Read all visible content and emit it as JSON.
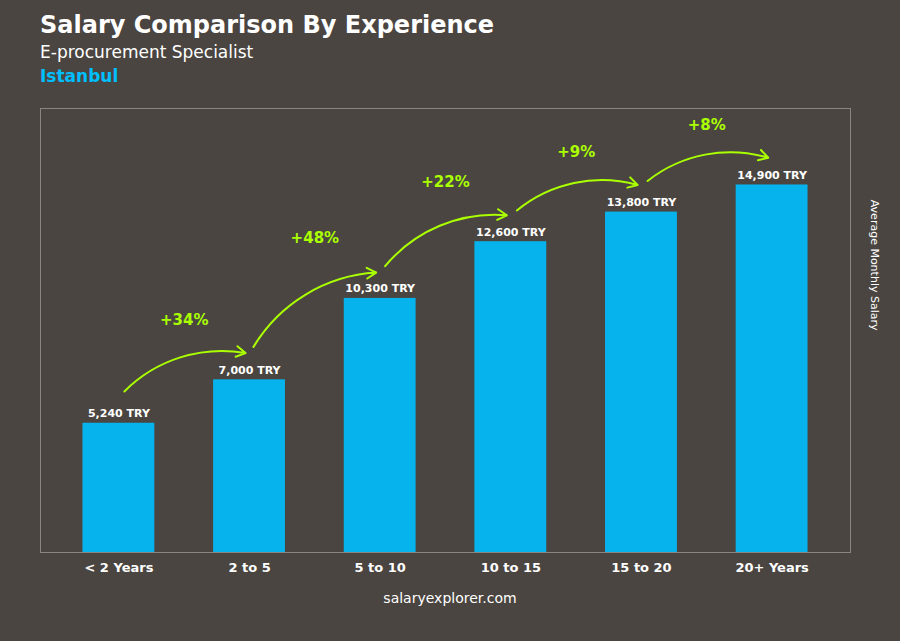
{
  "chart_data": {
    "type": "bar",
    "title": "Salary Comparison By Experience",
    "subtitle": "E-procurement Specialist",
    "ylabel": "Average Monthly Salary",
    "categories": [
      "< 2 Years",
      "2 to 5",
      "5 to 10",
      "10 to 15",
      "15 to 20",
      "20+ Years"
    ],
    "values": [
      5240,
      7000,
      10300,
      12600,
      13800,
      14900
    ],
    "value_labels": [
      "5,240 TRY",
      "7,000 TRY",
      "10,300 TRY",
      "12,600 TRY",
      "13,800 TRY",
      "14,900 TRY"
    ],
    "data_labels": true,
    "color": "#00BFFF",
    "ylim": [
      0,
      18000
    ],
    "yticks": [],
    "tick_labels": "x",
    "grid": false,
    "annotations": [
      {
        "text": "Istanbul",
        "color": "#00BFFF"
      },
      {
        "text": "+34%",
        "from": "< 2 Years",
        "to": "2 to 5",
        "color": "#AAFF00"
      },
      {
        "text": "+48%",
        "from": "2 to 5",
        "to": "5 to 10",
        "color": "#AAFF00"
      },
      {
        "text": "+22%",
        "from": "5 to 10",
        "to": "10 to 15",
        "color": "#AAFF00"
      },
      {
        "text": "+9%",
        "from": "10 to 15",
        "to": "15 to 20",
        "color": "#AAFF00"
      },
      {
        "text": "+8%",
        "from": "15 to 20",
        "to": "20+ Years",
        "color": "#AAFF00"
      },
      {
        "text": "salaryexplorer.com"
      }
    ]
  }
}
